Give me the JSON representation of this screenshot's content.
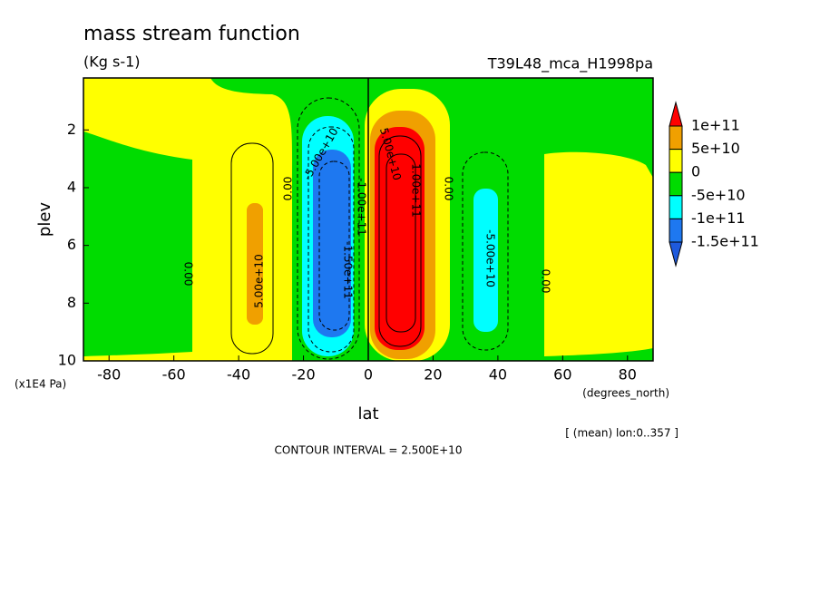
{
  "chart_data": {
    "type": "contour",
    "title": "mass stream function",
    "subtitle": "(Kg s-1)",
    "run_label": "T39L48_mca_H1998pa",
    "x_label": "lat",
    "x_unit": "(degrees_north)",
    "y_label": "plev",
    "y_unit": "(x1E4 Pa)",
    "note": "[ (mean) lon:0..357 ]",
    "footer": "CONTOUR INTERVAL = 2.500E+10",
    "xlim": [
      -87.9,
      87.9
    ],
    "xticks": [
      -80,
      -60,
      -40,
      -20,
      0,
      20,
      40,
      60,
      80
    ],
    "ylim": [
      10,
      0.2
    ],
    "yticks": [
      2,
      4,
      6,
      8,
      10
    ],
    "colorbar": {
      "levels": [
        {
          "value": 100000000000,
          "label": "1e+11"
        },
        {
          "value": 50000000000,
          "label": "5e+10"
        },
        0,
        {
          "value": -50000000000,
          "label": "-5e+10"
        },
        {
          "value": -100000000000,
          "label": "-1e+11"
        },
        {
          "value": -150000000000,
          "label": "-1.5e+11"
        }
      ],
      "colors": [
        "#ff0000",
        "#f0a000",
        "#ffff00",
        "#00dc00",
        "#00ffff",
        "#1e78f0",
        "#1e5adc"
      ]
    },
    "contour_labels": [
      {
        "value": 0,
        "label": "0.00"
      },
      {
        "value": 50000000000,
        "label": "5.00e+10"
      },
      {
        "value": 0,
        "label": "0.00"
      },
      {
        "value": -50000000000,
        "label": "-5.00e+10"
      },
      {
        "value": -100000000000,
        "label": "-1.00e+11"
      },
      {
        "value": -150000000000,
        "label": "-1.50e+11"
      },
      {
        "value": 50000000000,
        "label": "5.00e+10"
      },
      {
        "value": 100000000000,
        "label": "1.00e+11"
      },
      {
        "value": 0,
        "label": "0.00"
      },
      {
        "value": -50000000000,
        "label": "-5.00e+10"
      },
      {
        "value": 0,
        "label": "0.00"
      }
    ]
  }
}
